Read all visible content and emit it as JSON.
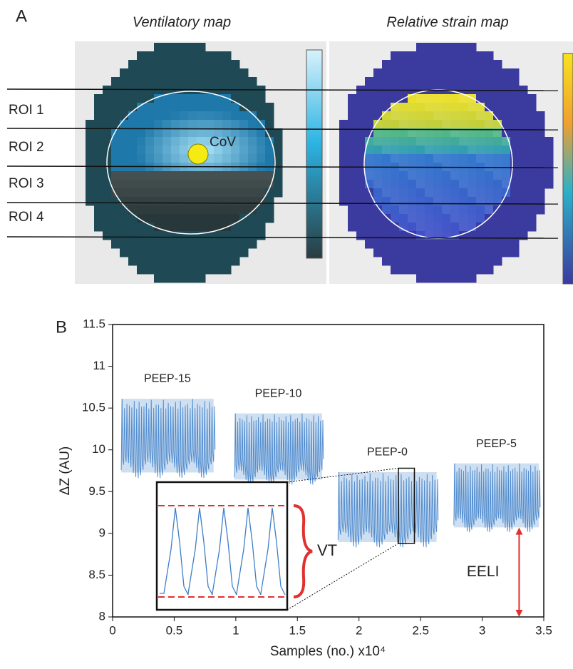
{
  "panel_a": {
    "label": "A",
    "map_titles": [
      "Ventilatory map",
      "Relative strain map"
    ],
    "rois": [
      "ROI 1",
      "ROI 2",
      "ROI 3",
      "ROI 4"
    ],
    "cov": "CoV"
  },
  "chart_data": {
    "type": "line",
    "panel_label": "B",
    "xlabel": "Samples (no.) x10⁴",
    "ylabel": "ΔZ (AU)",
    "xlim": [
      0,
      3.5
    ],
    "ylim": [
      8,
      11.5
    ],
    "xticks": [
      0,
      0.5,
      1,
      1.5,
      2,
      2.5,
      3,
      3.5
    ],
    "yticks": [
      8,
      8.5,
      9,
      9.5,
      10,
      10.5,
      11,
      11.5
    ],
    "series": [
      {
        "name": "PEEP-15",
        "color": "#3d7fc8",
        "x": [
          0.07,
          0.82
        ],
        "values": [
          9.68,
          10.66
        ]
      },
      {
        "name": "PEEP-10",
        "color": "#3d7fc8",
        "x": [
          0.99,
          1.7
        ],
        "values": [
          9.6,
          10.48
        ]
      },
      {
        "name": "PEEP-0",
        "color": "#3d7fc8",
        "x": [
          1.83,
          2.63
        ],
        "values": [
          8.85,
          9.78
        ]
      },
      {
        "name": "PEEP-5",
        "color": "#3d7fc8",
        "x": [
          2.77,
          3.46
        ],
        "values": [
          9.03,
          9.88
        ]
      }
    ],
    "zoom": {
      "x": [
        2.32,
        2.45
      ],
      "y": [
        8.88,
        9.78
      ]
    },
    "tidal_label": "VT",
    "eeli": {
      "label": "EELI",
      "x": 3.3,
      "y": [
        8,
        9.07
      ]
    }
  }
}
